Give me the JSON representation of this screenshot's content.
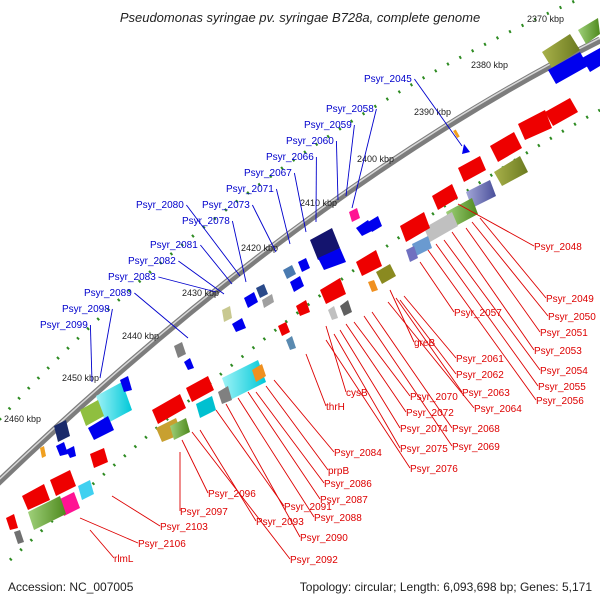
{
  "title": "Pseudomonas syringae pv. syringae B728a, complete genome",
  "footer": {
    "accession": "Accession: NC_007005",
    "summary": "Topology: circular; Length: 6,093,698 bp; Genes: 5,171"
  },
  "colors": {
    "backbone": "#808080",
    "tick": "#2e8b22",
    "forward_label": "#0000cc",
    "reverse_label": "#dd0000",
    "forward_arrow": "#0000ee",
    "reverse_arrow": "#ee0000"
  },
  "ruler": {
    "unit": "kbp",
    "labels": [
      "2370 kbp",
      "2380 kbp",
      "2390 kbp",
      "2400 kbp",
      "2410 kbp",
      "2420 kbp",
      "2430 kbp",
      "2440 kbp",
      "2450 kbp",
      "2460 kbp"
    ]
  },
  "forward_genes": [
    "Psyr_2045",
    "Psyr_2058",
    "Psyr_2059",
    "Psyr_2060",
    "Psyr_2066",
    "Psyr_2067",
    "Psyr_2071",
    "Psyr_2073",
    "Psyr_2078",
    "Psyr_2080",
    "Psyr_2081",
    "Psyr_2082",
    "Psyr_2083",
    "Psyr_2089",
    "Psyr_2098",
    "Psyr_2099"
  ],
  "reverse_genes": [
    "Psyr_2048",
    "Psyr_2049",
    "Psyr_2050",
    "Psyr_2051",
    "Psyr_2053",
    "Psyr_2054",
    "Psyr_2055",
    "Psyr_2056",
    "Psyr_2057",
    "greB",
    "Psyr_2061",
    "Psyr_2062",
    "Psyr_2063",
    "Psyr_2064",
    "Psyr_2068",
    "Psyr_2069",
    "cysB",
    "Psyr_2070",
    "Psyr_2072",
    "Psyr_2074",
    "Psyr_2075",
    "Psyr_2076",
    "thrH",
    "Psyr_2084",
    "prpB",
    "Psyr_2086",
    "Psyr_2087",
    "Psyr_2088",
    "Psyr_2090",
    "Psyr_2091",
    "Psyr_2093",
    "Psyr_2092",
    "Psyr_2096",
    "Psyr_2097",
    "Psyr_2103",
    "Psyr_2106",
    "rlmL"
  ]
}
